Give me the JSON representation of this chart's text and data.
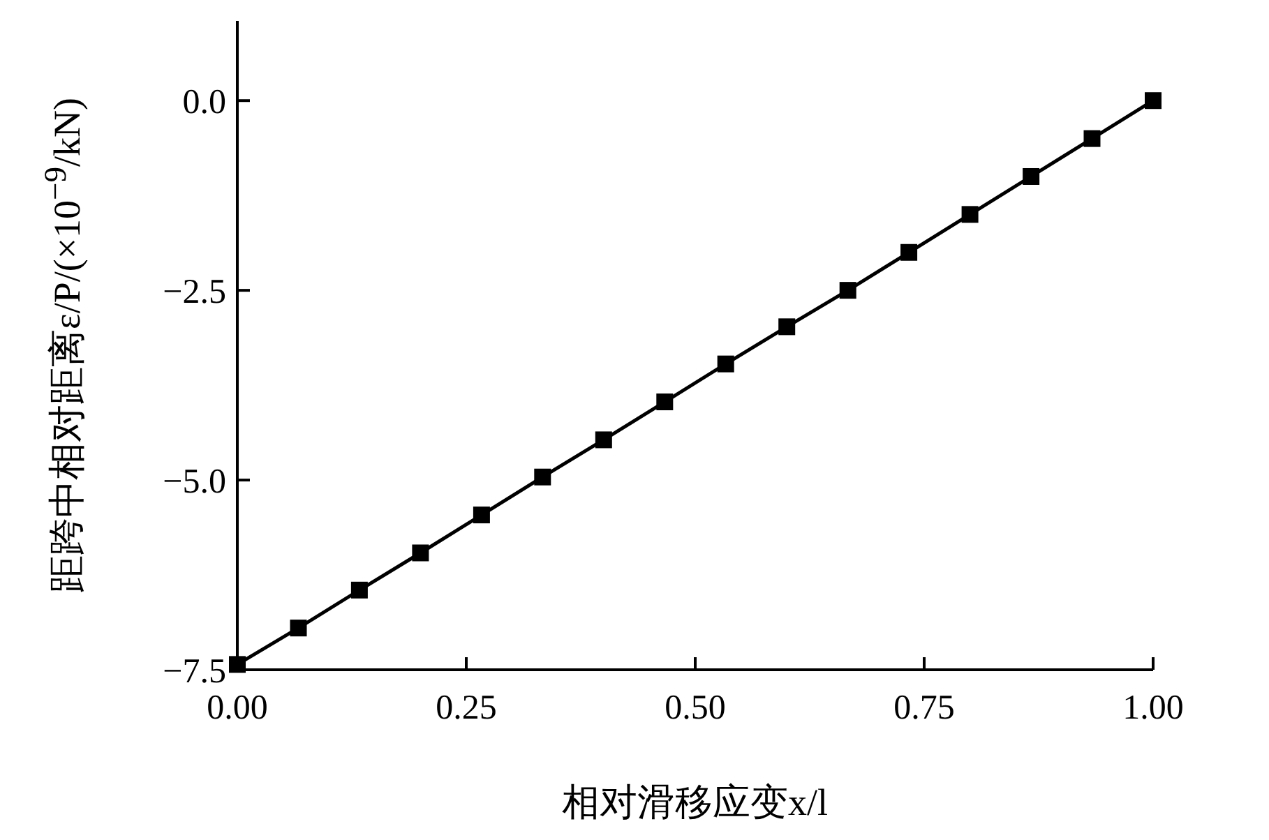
{
  "chart_data": {
    "type": "line",
    "xlabel": "相对滑移应变x/l",
    "ylabel": "距跨中相对距离ε/P/(×10$^{−9}$/kN)",
    "x": [
      0,
      0.0667,
      0.1333,
      0.2,
      0.2667,
      0.3333,
      0.4,
      0.4667,
      0.5333,
      0.6,
      0.6667,
      0.7333,
      0.8,
      0.8667,
      0.9333,
      1.0
    ],
    "series": [
      {
        "color": "#000000",
        "values": [
          -7.43,
          -6.95,
          -6.45,
          -5.96,
          -5.46,
          -4.96,
          -4.47,
          -3.97,
          -3.47,
          -2.98,
          -2.5,
          -2.0,
          -1.5,
          -1.0,
          -0.5,
          0.0
        ]
      }
    ],
    "xlim": [
      0,
      1
    ],
    "ylim": [
      -7.5,
      1.05
    ],
    "xticks": [
      {
        "value": 0,
        "label": "0.00"
      },
      {
        "value": 0.25,
        "label": "0.25"
      },
      {
        "value": 0.5,
        "label": "0.50"
      },
      {
        "value": 0.75,
        "label": "0.75"
      },
      {
        "value": 1,
        "label": "1.00"
      }
    ],
    "yticks": [
      {
        "value": -7.5,
        "label": "−7.5"
      },
      {
        "value": -5,
        "label": "−5.0"
      },
      {
        "value": -2.5,
        "label": "−2.5"
      },
      {
        "value": 0,
        "label": "0.0"
      }
    ],
    "marker": "square",
    "line_style": "solid",
    "grid": false
  }
}
